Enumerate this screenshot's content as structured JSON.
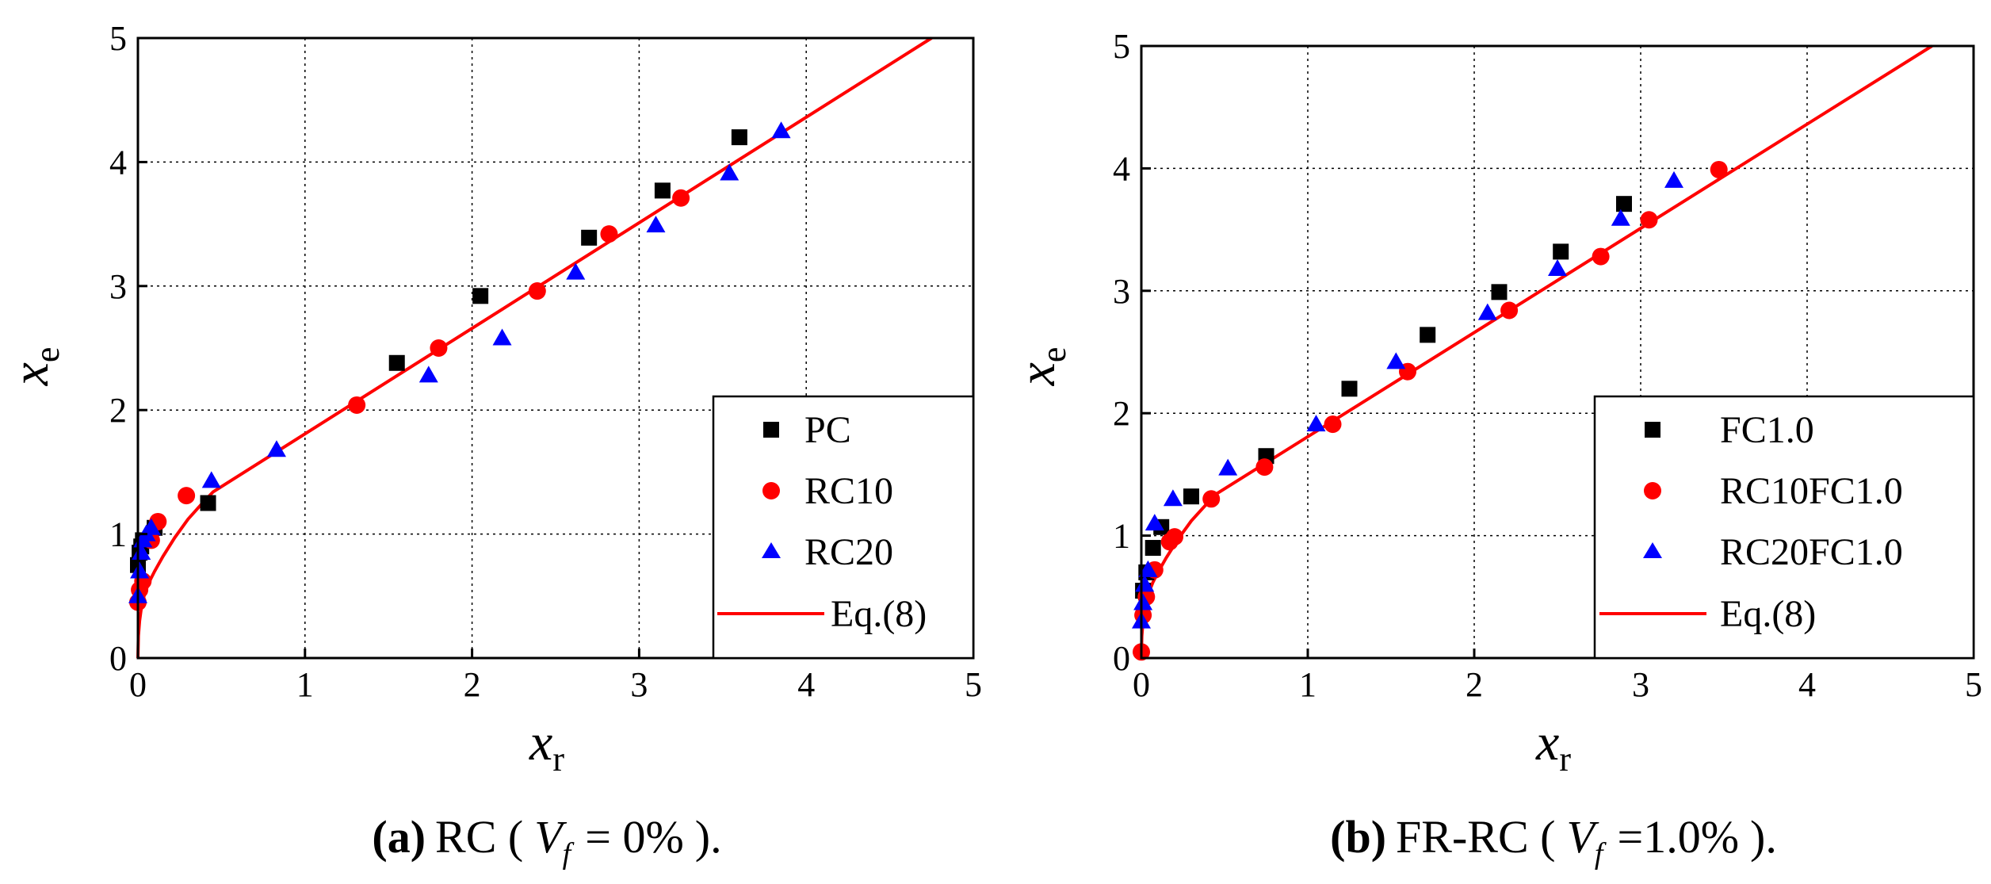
{
  "chart_data": [
    {
      "type": "scatter",
      "panel_label": "(a)",
      "caption_text": "RC (",
      "caption_var": "V",
      "caption_sub": "f",
      "caption_eq": "= 0%",
      "caption_tail": ").",
      "xlabel_main": "x",
      "xlabel_sub": "r",
      "ylabel_main": "x",
      "ylabel_sub": "e",
      "xlim": [
        0,
        5
      ],
      "ylim": [
        0,
        5
      ],
      "xticks": [
        "0",
        "1",
        "2",
        "3",
        "4",
        "5"
      ],
      "yticks": [
        "0",
        "1",
        "2",
        "3",
        "4",
        "5"
      ],
      "grid": true,
      "legend_position": "bottom-right",
      "series": [
        {
          "name": "PC",
          "marker": "square",
          "color": "#000000",
          "x": [
            0.0,
            0.01,
            0.02,
            0.03,
            0.1,
            0.42,
            1.55,
            2.05,
            2.7,
            3.14,
            3.6
          ],
          "y": [
            0.75,
            0.85,
            0.9,
            0.95,
            1.05,
            1.25,
            2.38,
            2.92,
            3.39,
            3.77,
            4.2
          ]
        },
        {
          "name": "RC10",
          "marker": "circle",
          "color": "#ff0000",
          "x": [
            0.0,
            0.01,
            0.03,
            0.08,
            0.12,
            0.29,
            1.31,
            1.8,
            2.39,
            2.82,
            3.25
          ],
          "y": [
            0.45,
            0.55,
            0.62,
            0.95,
            1.1,
            1.31,
            2.04,
            2.5,
            2.96,
            3.42,
            3.71
          ]
        },
        {
          "name": "RC20",
          "marker": "triangle",
          "color": "#0000ff",
          "x": [
            0.0,
            0.01,
            0.02,
            0.03,
            0.05,
            0.08,
            0.44,
            0.83,
            1.74,
            2.18,
            2.62,
            3.1,
            3.54,
            3.85
          ],
          "y": [
            0.5,
            0.7,
            0.85,
            0.95,
            1.0,
            1.05,
            1.43,
            1.68,
            2.28,
            2.58,
            3.11,
            3.49,
            3.91,
            4.25
          ]
        },
        {
          "name": "Eq.(8)",
          "marker": "line",
          "color": "#ff0000",
          "x": [
            0,
            0.003,
            0.01,
            0.02,
            0.04,
            0.07,
            0.1,
            0.15,
            0.22,
            0.3,
            0.4,
            0.45,
            4.75
          ],
          "y": [
            0,
            0.18,
            0.3,
            0.4,
            0.52,
            0.62,
            0.7,
            0.82,
            0.97,
            1.12,
            1.27,
            1.34,
            5.0
          ]
        }
      ]
    },
    {
      "type": "scatter",
      "panel_label": "(b)",
      "caption_text": "FR-RC (",
      "caption_var": "V",
      "caption_sub": "f",
      "caption_eq": "=1.0%",
      "caption_tail": ").",
      "xlabel_main": "x",
      "xlabel_sub": "r",
      "ylabel_main": "x",
      "ylabel_sub": "e",
      "xlim": [
        0,
        5
      ],
      "ylim": [
        0,
        5
      ],
      "xticks": [
        "0",
        "1",
        "2",
        "3",
        "4",
        "5"
      ],
      "yticks": [
        "0",
        "1",
        "2",
        "3",
        "4",
        "5"
      ],
      "grid": true,
      "legend_position": "bottom-right",
      "series": [
        {
          "name": "FC1.0",
          "marker": "square",
          "color": "#000000",
          "x": [
            0.01,
            0.03,
            0.07,
            0.12,
            0.3,
            0.75,
            1.25,
            1.72,
            2.15,
            2.52,
            2.9
          ],
          "y": [
            0.55,
            0.7,
            0.9,
            1.07,
            1.32,
            1.65,
            2.2,
            2.64,
            2.99,
            3.32,
            3.71
          ]
        },
        {
          "name": "RC10FC1.0",
          "marker": "circle",
          "color": "#ff0000",
          "x": [
            0.0,
            0.01,
            0.03,
            0.08,
            0.17,
            0.2,
            0.42,
            0.74,
            1.15,
            1.6,
            2.21,
            2.76,
            3.05,
            3.47
          ],
          "y": [
            0.05,
            0.35,
            0.5,
            0.72,
            0.95,
            0.99,
            1.3,
            1.56,
            1.91,
            2.34,
            2.84,
            3.28,
            3.58,
            3.99
          ]
        },
        {
          "name": "RC20FC1.0",
          "marker": "triangle",
          "color": "#0000ff",
          "x": [
            0.0,
            0.01,
            0.02,
            0.04,
            0.08,
            0.19,
            0.52,
            1.05,
            1.53,
            2.08,
            2.5,
            2.88,
            3.2
          ],
          "y": [
            0.3,
            0.45,
            0.6,
            0.72,
            1.1,
            1.3,
            1.55,
            1.91,
            2.42,
            2.82,
            3.18,
            3.59,
            3.9
          ]
        },
        {
          "name": "Eq.(8)",
          "marker": "line",
          "color": "#ff0000",
          "x": [
            0,
            0.003,
            0.01,
            0.02,
            0.04,
            0.07,
            0.1,
            0.15,
            0.22,
            0.3,
            0.4,
            0.45,
            4.75
          ],
          "y": [
            0,
            0.18,
            0.3,
            0.4,
            0.52,
            0.62,
            0.7,
            0.82,
            0.97,
            1.12,
            1.27,
            1.34,
            5.0
          ]
        }
      ]
    }
  ]
}
